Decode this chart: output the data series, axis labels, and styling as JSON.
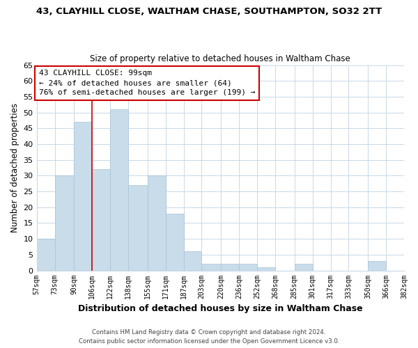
{
  "title": "43, CLAYHILL CLOSE, WALTHAM CHASE, SOUTHAMPTON, SO32 2TT",
  "subtitle": "Size of property relative to detached houses in Waltham Chase",
  "xlabel": "Distribution of detached houses by size in Waltham Chase",
  "ylabel": "Number of detached properties",
  "bar_color": "#c8dcea",
  "bar_edge_color": "#a8c4d8",
  "background_color": "#ffffff",
  "grid_color": "#c8d8e8",
  "bins": [
    57,
    73,
    90,
    106,
    122,
    138,
    155,
    171,
    187,
    203,
    220,
    236,
    252,
    268,
    285,
    301,
    317,
    333,
    350,
    366,
    382
  ],
  "bin_labels": [
    "57sqm",
    "73sqm",
    "90sqm",
    "106sqm",
    "122sqm",
    "138sqm",
    "155sqm",
    "171sqm",
    "187sqm",
    "203sqm",
    "220sqm",
    "236sqm",
    "252sqm",
    "268sqm",
    "285sqm",
    "301sqm",
    "317sqm",
    "333sqm",
    "350sqm",
    "366sqm",
    "382sqm"
  ],
  "counts": [
    10,
    30,
    47,
    32,
    51,
    27,
    30,
    18,
    6,
    2,
    2,
    2,
    1,
    0,
    2,
    0,
    0,
    0,
    3,
    0
  ],
  "property_line_x": 106,
  "property_line_color": "#cc0000",
  "annotation_title": "43 CLAYHILL CLOSE: 99sqm",
  "annotation_line1": "← 24% of detached houses are smaller (64)",
  "annotation_line2": "76% of semi-detached houses are larger (199) →",
  "annotation_box_color": "#ffffff",
  "annotation_box_edge_color": "#cc0000",
  "ylim": [
    0,
    65
  ],
  "yticks": [
    0,
    5,
    10,
    15,
    20,
    25,
    30,
    35,
    40,
    45,
    50,
    55,
    60,
    65
  ],
  "footer1": "Contains HM Land Registry data © Crown copyright and database right 2024.",
  "footer2": "Contains public sector information licensed under the Open Government Licence v3.0."
}
